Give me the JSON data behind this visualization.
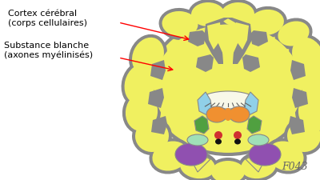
{
  "bg_color": "#ffffff",
  "ann1_line1": "Cortex cérébral",
  "ann1_line2": "(corps cellulaires)",
  "ann2_line1": "Substance blanche",
  "ann2_line2": "(axones myélinisés)",
  "signature": "F043",
  "gray": "#888888",
  "yellow": "#f0f060",
  "orange": "#f09030",
  "light_blue": "#90d0e8",
  "green": "#50a040",
  "purple": "#9050b0",
  "mint": "#a0e0b8",
  "red": "#d03030",
  "black": "#111111",
  "white_cream": "#f8f8e8",
  "gray_dark": "#606060"
}
